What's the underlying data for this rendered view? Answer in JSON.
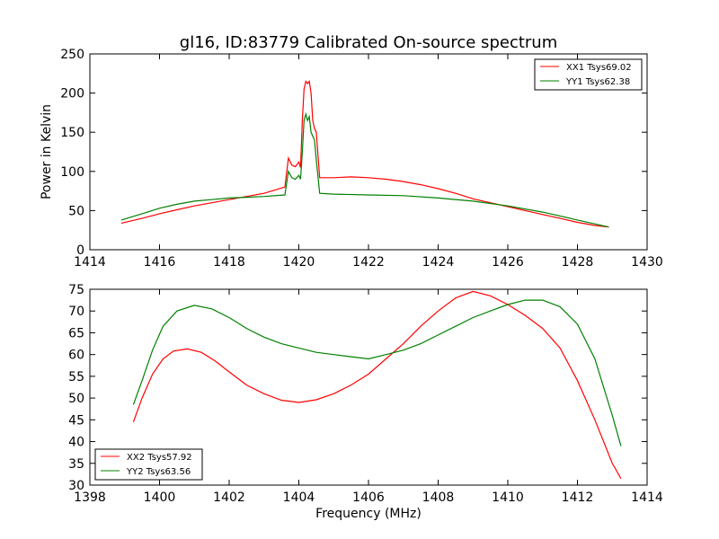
{
  "figure": {
    "title": "gl16, ID:83779 Calibrated On-source spectrum",
    "xlabel": "Frequency (MHz)"
  },
  "chart_data": [
    {
      "type": "line",
      "title": "gl16, ID:83779 Calibrated On-source spectrum",
      "xlabel": "",
      "ylabel": "Power in Kelvin",
      "xlim": [
        1414,
        1430
      ],
      "ylim": [
        0,
        250
      ],
      "xticks": [
        1414,
        1416,
        1418,
        1420,
        1422,
        1424,
        1426,
        1428,
        1430
      ],
      "yticks": [
        0,
        50,
        100,
        150,
        200,
        250
      ],
      "grid": false,
      "legend_position": "upper right",
      "series": [
        {
          "name": "XX1 Tsys69.02",
          "color": "#ff0000",
          "points": [
            [
              1414.9,
              34
            ],
            [
              1415.5,
              40
            ],
            [
              1416,
              46
            ],
            [
              1416.5,
              51
            ],
            [
              1417,
              56
            ],
            [
              1417.5,
              60
            ],
            [
              1418,
              64
            ],
            [
              1418.5,
              68
            ],
            [
              1419,
              72
            ],
            [
              1419.3,
              76
            ],
            [
              1419.6,
              80
            ],
            [
              1419.7,
              117
            ],
            [
              1419.8,
              108
            ],
            [
              1419.9,
              106
            ],
            [
              1420,
              112
            ],
            [
              1420.05,
              105
            ],
            [
              1420.1,
              165
            ],
            [
              1420.15,
              205
            ],
            [
              1420.2,
              215
            ],
            [
              1420.25,
              212
            ],
            [
              1420.3,
              215
            ],
            [
              1420.35,
              200
            ],
            [
              1420.4,
              165
            ],
            [
              1420.45,
              155
            ],
            [
              1420.5,
              150
            ],
            [
              1420.6,
              92
            ],
            [
              1421,
              92
            ],
            [
              1421.5,
              93
            ],
            [
              1422,
              92
            ],
            [
              1422.5,
              90
            ],
            [
              1423,
              87
            ],
            [
              1423.5,
              83
            ],
            [
              1424,
              78
            ],
            [
              1424.5,
              72
            ],
            [
              1425,
              65
            ],
            [
              1425.5,
              60
            ],
            [
              1426,
              55
            ],
            [
              1426.5,
              50
            ],
            [
              1427,
              45
            ],
            [
              1427.5,
              40
            ],
            [
              1428,
              35
            ],
            [
              1428.5,
              31
            ],
            [
              1428.9,
              29
            ]
          ]
        },
        {
          "name": "YY1 Tsys62.38",
          "color": "#008000",
          "points": [
            [
              1414.9,
              38
            ],
            [
              1415.5,
              46
            ],
            [
              1416,
              53
            ],
            [
              1416.5,
              58
            ],
            [
              1417,
              62
            ],
            [
              1417.5,
              64
            ],
            [
              1418,
              66
            ],
            [
              1418.5,
              67
            ],
            [
              1419,
              68
            ],
            [
              1419.6,
              70
            ],
            [
              1419.7,
              100
            ],
            [
              1419.8,
              92
            ],
            [
              1419.9,
              90
            ],
            [
              1420,
              95
            ],
            [
              1420.05,
              90
            ],
            [
              1420.1,
              125
            ],
            [
              1420.15,
              165
            ],
            [
              1420.2,
              173
            ],
            [
              1420.25,
              165
            ],
            [
              1420.3,
              170
            ],
            [
              1420.35,
              150
            ],
            [
              1420.4,
              145
            ],
            [
              1420.45,
              140
            ],
            [
              1420.5,
              115
            ],
            [
              1420.6,
              72
            ],
            [
              1421,
              71
            ],
            [
              1422,
              70
            ],
            [
              1423,
              69
            ],
            [
              1424,
              66
            ],
            [
              1425,
              62
            ],
            [
              1426,
              56
            ],
            [
              1427,
              48
            ],
            [
              1428,
              38
            ],
            [
              1428.9,
              29
            ]
          ]
        }
      ]
    },
    {
      "type": "line",
      "title": "",
      "xlabel": "Frequency (MHz)",
      "ylabel": "",
      "xlim": [
        1398,
        1414
      ],
      "ylim": [
        30,
        75
      ],
      "xticks": [
        1398,
        1400,
        1402,
        1404,
        1406,
        1408,
        1410,
        1412,
        1414
      ],
      "yticks": [
        30,
        35,
        40,
        45,
        50,
        55,
        60,
        65,
        70,
        75
      ],
      "grid": false,
      "legend_position": "lower left",
      "series": [
        {
          "name": "XX2 Tsys57.92",
          "color": "#ff0000",
          "points": [
            [
              1399.25,
              44.5
            ],
            [
              1399.5,
              50
            ],
            [
              1399.8,
              55.5
            ],
            [
              1400.1,
              59
            ],
            [
              1400.4,
              60.8
            ],
            [
              1400.8,
              61.3
            ],
            [
              1401.2,
              60.5
            ],
            [
              1401.6,
              58.5
            ],
            [
              1402,
              56
            ],
            [
              1402.5,
              53
            ],
            [
              1403,
              51
            ],
            [
              1403.5,
              49.5
            ],
            [
              1404,
              49
            ],
            [
              1404.5,
              49.6
            ],
            [
              1405,
              51
            ],
            [
              1405.5,
              53
            ],
            [
              1406,
              55.5
            ],
            [
              1406.5,
              59
            ],
            [
              1407,
              62.5
            ],
            [
              1407.5,
              66.5
            ],
            [
              1408,
              70
            ],
            [
              1408.5,
              73
            ],
            [
              1409,
              74.5
            ],
            [
              1409.5,
              73.5
            ],
            [
              1410,
              71.5
            ],
            [
              1410.5,
              69
            ],
            [
              1411,
              66
            ],
            [
              1411.5,
              61.5
            ],
            [
              1412,
              54
            ],
            [
              1412.5,
              45
            ],
            [
              1413,
              35
            ],
            [
              1413.25,
              31.5
            ]
          ]
        },
        {
          "name": "YY2 Tsys63.56",
          "color": "#008000",
          "points": [
            [
              1399.25,
              48.5
            ],
            [
              1399.5,
              54
            ],
            [
              1399.8,
              61
            ],
            [
              1400.1,
              66.5
            ],
            [
              1400.5,
              70
            ],
            [
              1401,
              71.3
            ],
            [
              1401.5,
              70.5
            ],
            [
              1402,
              68.5
            ],
            [
              1402.5,
              66
            ],
            [
              1403,
              64
            ],
            [
              1403.5,
              62.5
            ],
            [
              1404,
              61.5
            ],
            [
              1404.5,
              60.5
            ],
            [
              1405,
              60
            ],
            [
              1405.5,
              59.5
            ],
            [
              1406,
              59
            ],
            [
              1406.5,
              60
            ],
            [
              1407,
              61
            ],
            [
              1407.5,
              62.5
            ],
            [
              1408,
              64.5
            ],
            [
              1408.5,
              66.5
            ],
            [
              1409,
              68.5
            ],
            [
              1409.5,
              70
            ],
            [
              1410,
              71.5
            ],
            [
              1410.5,
              72.5
            ],
            [
              1411,
              72.5
            ],
            [
              1411.5,
              71
            ],
            [
              1412,
              67
            ],
            [
              1412.5,
              59
            ],
            [
              1413,
              46
            ],
            [
              1413.25,
              39
            ]
          ]
        }
      ]
    }
  ]
}
